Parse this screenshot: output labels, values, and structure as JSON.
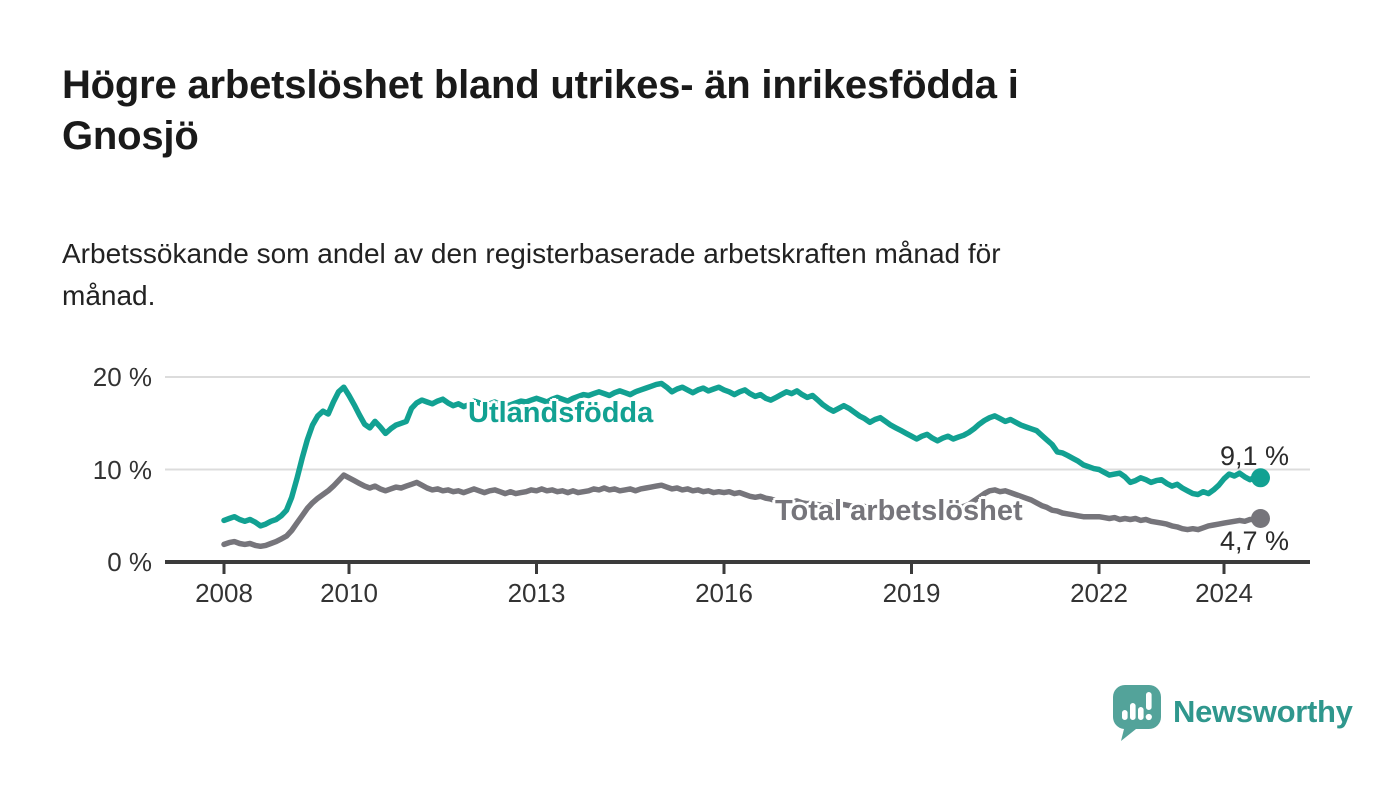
{
  "header": {
    "title": "Högre arbetslöshet bland utrikes- än inrikesfödda i\nGnosjö",
    "subtitle": "Arbetssökande som andel av den registerbaserade arbetskraften månad för\nmånad."
  },
  "chart_data": {
    "type": "line",
    "title": "Högre arbetslöshet bland utrikes- än inrikesfödda i Gnosjö",
    "xlabel": "",
    "ylabel": "",
    "unit": "%",
    "frequency": "monthly",
    "x_start": "2008-01",
    "x_end": "2024-08",
    "ylim": [
      0,
      21
    ],
    "grid": "horizontal",
    "legend_position": "inline-labels",
    "yticks": [
      {
        "label": "20 %",
        "value": 20
      },
      {
        "label": "10 %",
        "value": 10
      },
      {
        "label": "0 %",
        "value": 0
      }
    ],
    "xticks": [
      {
        "label": "2008",
        "year": 2008
      },
      {
        "label": "2010",
        "year": 2010
      },
      {
        "label": "2013",
        "year": 2013
      },
      {
        "label": "2016",
        "year": 2016
      },
      {
        "label": "2019",
        "year": 2019
      },
      {
        "label": "2022",
        "year": 2022
      },
      {
        "label": "2024",
        "year": 2024
      }
    ],
    "series": [
      {
        "name": "Utlandsfödda",
        "color": "#12a192",
        "end_label": "9,1 %",
        "end_value": 9.1,
        "values": [
          4.5,
          4.7,
          4.9,
          4.6,
          4.4,
          4.6,
          4.3,
          3.9,
          4.1,
          4.4,
          4.6,
          5.0,
          5.6,
          7.0,
          9.0,
          11.2,
          13.2,
          14.8,
          15.8,
          16.3,
          16.0,
          17.3,
          18.4,
          18.9,
          18.0,
          17.0,
          15.9,
          14.9,
          14.5,
          15.2,
          14.6,
          13.9,
          14.4,
          14.8,
          15.0,
          15.2,
          16.6,
          17.2,
          17.5,
          17.3,
          17.1,
          17.4,
          17.6,
          17.2,
          16.9,
          17.1,
          16.8,
          17.0,
          17.4,
          17.2,
          16.9,
          17.1,
          17.3,
          17.0,
          16.8,
          17.0,
          17.2,
          17.4,
          17.3,
          17.5,
          17.7,
          17.5,
          17.3,
          17.6,
          17.8,
          17.6,
          17.4,
          17.7,
          17.9,
          18.1,
          18.0,
          18.2,
          18.4,
          18.2,
          18.0,
          18.3,
          18.5,
          18.3,
          18.1,
          18.4,
          18.6,
          18.8,
          19.0,
          19.2,
          19.3,
          18.9,
          18.4,
          18.7,
          18.9,
          18.6,
          18.3,
          18.6,
          18.8,
          18.5,
          18.7,
          18.9,
          18.6,
          18.4,
          18.1,
          18.4,
          18.6,
          18.2,
          17.9,
          18.1,
          17.7,
          17.5,
          17.8,
          18.1,
          18.4,
          18.2,
          18.5,
          18.1,
          17.8,
          18.0,
          17.5,
          17.0,
          16.6,
          16.3,
          16.6,
          16.9,
          16.6,
          16.2,
          15.8,
          15.5,
          15.1,
          15.4,
          15.6,
          15.2,
          14.8,
          14.5,
          14.2,
          13.9,
          13.6,
          13.3,
          13.6,
          13.8,
          13.4,
          13.1,
          13.4,
          13.6,
          13.3,
          13.5,
          13.7,
          14.0,
          14.4,
          14.9,
          15.3,
          15.6,
          15.8,
          15.5,
          15.2,
          15.4,
          15.1,
          14.8,
          14.6,
          14.4,
          14.2,
          13.7,
          13.2,
          12.7,
          11.9,
          11.8,
          11.5,
          11.2,
          10.9,
          10.5,
          10.3,
          10.1,
          10.0,
          9.7,
          9.4,
          9.5,
          9.6,
          9.2,
          8.6,
          8.8,
          9.1,
          8.9,
          8.6,
          8.8,
          8.9,
          8.5,
          8.2,
          8.4,
          8.0,
          7.7,
          7.4,
          7.3,
          7.6,
          7.4,
          7.8,
          8.3,
          9.0,
          9.5,
          9.3,
          9.6,
          9.2,
          8.9,
          9.2,
          9.1
        ]
      },
      {
        "name": "Total arbetslöshet",
        "color": "#76757b",
        "end_label": "4,7 %",
        "end_value": 4.7,
        "values": [
          1.9,
          2.1,
          2.2,
          2.0,
          1.9,
          2.0,
          1.8,
          1.7,
          1.8,
          2.0,
          2.2,
          2.5,
          2.8,
          3.4,
          4.2,
          5.0,
          5.8,
          6.4,
          6.9,
          7.3,
          7.7,
          8.2,
          8.8,
          9.4,
          9.1,
          8.8,
          8.5,
          8.2,
          8.0,
          8.2,
          7.9,
          7.7,
          7.9,
          8.1,
          8.0,
          8.2,
          8.4,
          8.6,
          8.3,
          8.0,
          7.8,
          7.9,
          7.7,
          7.8,
          7.6,
          7.7,
          7.5,
          7.7,
          7.9,
          7.7,
          7.5,
          7.7,
          7.8,
          7.6,
          7.4,
          7.6,
          7.4,
          7.5,
          7.6,
          7.8,
          7.7,
          7.9,
          7.7,
          7.8,
          7.6,
          7.7,
          7.5,
          7.7,
          7.5,
          7.6,
          7.7,
          7.9,
          7.8,
          8.0,
          7.8,
          7.9,
          7.7,
          7.8,
          7.9,
          7.7,
          7.9,
          8.0,
          8.1,
          8.2,
          8.3,
          8.1,
          7.9,
          8.0,
          7.8,
          7.9,
          7.7,
          7.8,
          7.6,
          7.7,
          7.5,
          7.6,
          7.5,
          7.6,
          7.4,
          7.5,
          7.3,
          7.1,
          7.0,
          7.1,
          6.9,
          6.8,
          6.6,
          6.7,
          6.6,
          6.5,
          6.6,
          6.4,
          6.3,
          6.4,
          6.2,
          6.1,
          6.2,
          6.0,
          6.1,
          6.2,
          6.1,
          6.0,
          5.9,
          6.0,
          5.8,
          5.9,
          5.7,
          5.8,
          5.6,
          5.7,
          5.8,
          5.9,
          5.8,
          5.7,
          5.8,
          5.6,
          5.7,
          5.5,
          5.6,
          5.7,
          5.8,
          5.9,
          6.0,
          6.2,
          6.6,
          7.0,
          7.4,
          7.7,
          7.8,
          7.6,
          7.7,
          7.5,
          7.3,
          7.1,
          6.9,
          6.7,
          6.4,
          6.1,
          5.9,
          5.6,
          5.5,
          5.3,
          5.2,
          5.1,
          5.0,
          4.9,
          4.9,
          4.9,
          4.9,
          4.8,
          4.7,
          4.8,
          4.6,
          4.7,
          4.6,
          4.7,
          4.5,
          4.6,
          4.4,
          4.3,
          4.2,
          4.1,
          3.9,
          3.8,
          3.6,
          3.5,
          3.6,
          3.5,
          3.7,
          3.9,
          4.0,
          4.1,
          4.2,
          4.3,
          4.4,
          4.5,
          4.4,
          4.6,
          4.6,
          4.7
        ]
      }
    ],
    "colors": {
      "axis": "#3b3b3b",
      "grid": "#dcdcdc",
      "tick_text": "#333333"
    }
  },
  "footer": {
    "brand": "Newsworthy",
    "logo_icon": "newsworthy-speech-bubble-bar-chart",
    "brand_color": "#2f978d",
    "logo_bubble_color": "#53a39a"
  }
}
